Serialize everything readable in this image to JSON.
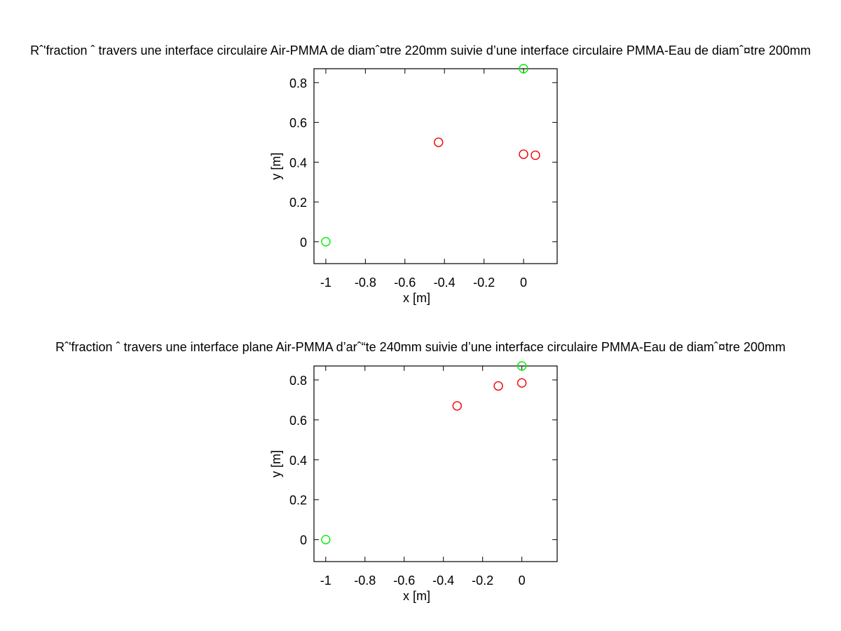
{
  "chart_data": [
    {
      "type": "scatter",
      "title": "Rˆ'fraction ˆ  travers une interface circulaire Air-PMMA de diamˆ¤tre 220mm suivie d’une interface circulaire PMMA-Eau de diamˆ¤tre 200mm",
      "xlabel": "x [m]",
      "ylabel": "y [m]",
      "xlim": [
        -1.06,
        0.17
      ],
      "ylim": [
        -0.11,
        0.87
      ],
      "xticks": [
        -1,
        -0.8,
        -0.6,
        -0.4,
        -0.2,
        0
      ],
      "yticks": [
        0,
        0.2,
        0.4,
        0.6,
        0.8
      ],
      "grid": false,
      "series": [
        {
          "color": "#00ee00",
          "marker": "circle",
          "points": [
            [
              -1.0,
              0.0
            ],
            [
              0.0,
              0.87
            ]
          ]
        },
        {
          "color": "#ee0000",
          "marker": "circle",
          "points": [
            [
              -0.43,
              0.5
            ],
            [
              0.0,
              0.44
            ],
            [
              0.06,
              0.435
            ]
          ]
        }
      ]
    },
    {
      "type": "scatter",
      "title": "Rˆ'fraction ˆ  travers une interface plane Air-PMMA d’arˆ“te 240mm suivie d’une interface circulaire PMMA-Eau de diamˆ¤tre 200mm",
      "xlabel": "x [m]",
      "ylabel": "y [m]",
      "xlim": [
        -1.06,
        0.18
      ],
      "ylim": [
        -0.11,
        0.87
      ],
      "xticks": [
        -1,
        -0.8,
        -0.6,
        -0.4,
        -0.2,
        0
      ],
      "yticks": [
        0,
        0.2,
        0.4,
        0.6,
        0.8
      ],
      "grid": false,
      "series": [
        {
          "color": "#00ee00",
          "marker": "circle",
          "points": [
            [
              -1.0,
              0.0
            ],
            [
              0.0,
              0.87
            ]
          ]
        },
        {
          "color": "#ee0000",
          "marker": "circle",
          "points": [
            [
              -0.33,
              0.67
            ],
            [
              -0.12,
              0.77
            ],
            [
              0.0,
              0.785
            ]
          ]
        }
      ]
    }
  ]
}
